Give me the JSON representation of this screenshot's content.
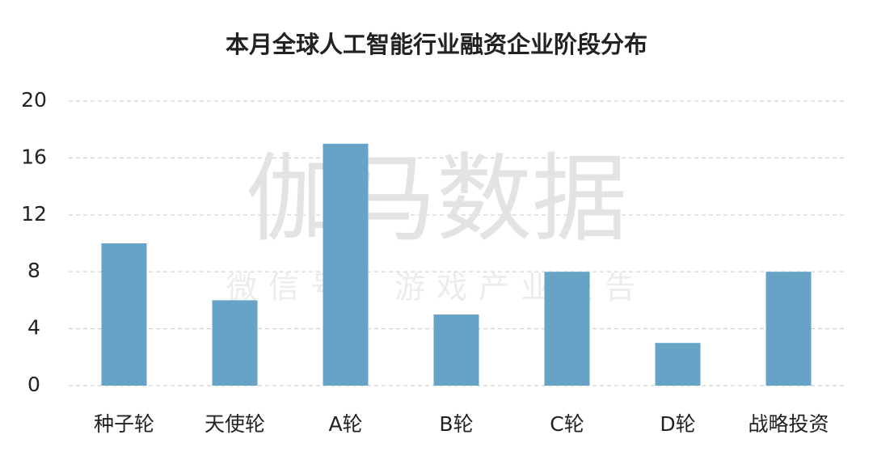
{
  "chart_data": {
    "type": "bar",
    "title": "本月全球人工智能行业融资企业阶段分布",
    "categories": [
      "种子轮",
      "天使轮",
      "A轮",
      "B轮",
      "C轮",
      "D轮",
      "战略投资"
    ],
    "values": [
      10,
      6,
      17,
      5,
      8,
      3,
      8
    ],
    "color": "#66a3c6",
    "ylim": [
      0,
      20
    ],
    "yticks": [
      0,
      4,
      8,
      12,
      16,
      20
    ],
    "grid": true,
    "annotations": [
      "伽马数据",
      "微信号：游戏产业报告"
    ]
  }
}
